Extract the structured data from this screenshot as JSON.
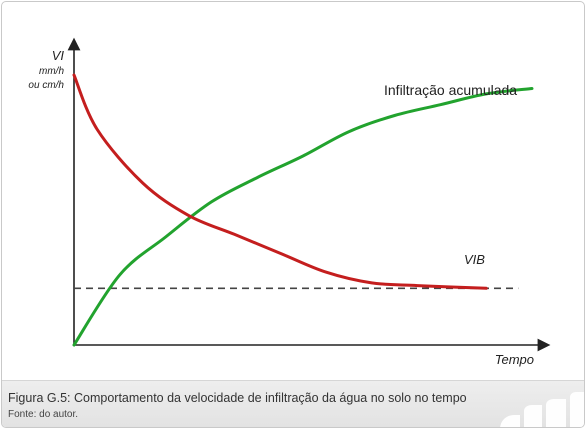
{
  "chart_data": {
    "type": "line",
    "ylabel": "VI",
    "yunit_line1": "mm/h",
    "yunit_line2": "ou cm/h",
    "xlabel": "Tempo",
    "series": [
      {
        "name": "Infiltração acumulada",
        "color": "#22a32e",
        "x": [
          0,
          10,
          20,
          30,
          40,
          50,
          60,
          70,
          80,
          90,
          100
        ],
        "y": [
          0,
          26,
          40,
          53,
          62,
          70,
          79,
          85,
          89,
          93,
          95
        ]
      },
      {
        "name": "VIB",
        "color": "#c41e1e",
        "x": [
          0,
          5,
          15,
          25,
          35,
          45,
          55,
          65,
          75,
          90
        ],
        "y": [
          100,
          80,
          60,
          48,
          41,
          34,
          27,
          23,
          22,
          21
        ]
      }
    ],
    "baseline": {
      "label": "VIB",
      "y": 21,
      "color": "#444444",
      "style": "dashed"
    }
  },
  "caption": {
    "title": "Figura G.5: Comportamento da velocidade de infiltração da água no solo no tempo",
    "source": "Fonte: do autor."
  }
}
